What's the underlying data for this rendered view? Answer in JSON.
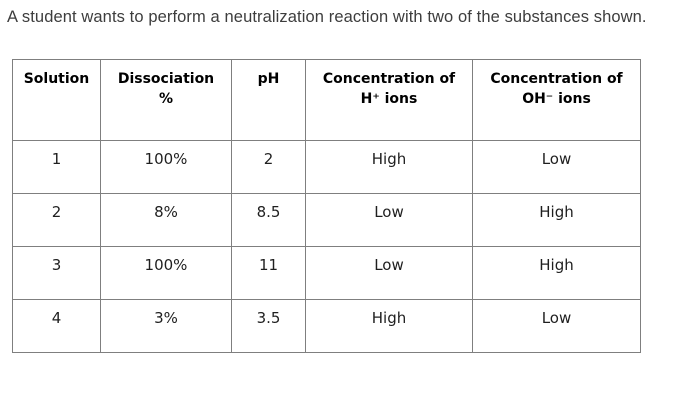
{
  "question": {
    "text": "A student wants to perform a neutralization reaction with two of the substances shown."
  },
  "table": {
    "headers": {
      "solution": "Solution",
      "dissociation": "Dissociation\n%",
      "ph": "pH",
      "h_ions": "Concentration of\nH⁺ ions",
      "oh_ions": "Concentration of\nOH⁻ ions"
    },
    "rows": [
      {
        "solution": "1",
        "dissociation": "100%",
        "ph": "2",
        "h_ions": "High",
        "oh_ions": "Low"
      },
      {
        "solution": "2",
        "dissociation": "8%",
        "ph": "8.5",
        "h_ions": "Low",
        "oh_ions": "High"
      },
      {
        "solution": "3",
        "dissociation": "100%",
        "ph": "11",
        "h_ions": "Low",
        "oh_ions": "High"
      },
      {
        "solution": "4",
        "dissociation": "3%",
        "ph": "3.5",
        "h_ions": "High",
        "oh_ions": "Low"
      }
    ]
  }
}
